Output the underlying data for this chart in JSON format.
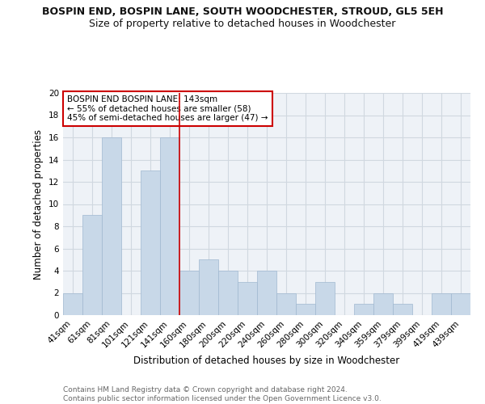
{
  "title": "BOSPIN END, BOSPIN LANE, SOUTH WOODCHESTER, STROUD, GL5 5EH",
  "subtitle": "Size of property relative to detached houses in Woodchester",
  "xlabel": "Distribution of detached houses by size in Woodchester",
  "ylabel": "Number of detached properties",
  "categories": [
    "41sqm",
    "61sqm",
    "81sqm",
    "101sqm",
    "121sqm",
    "141sqm",
    "160sqm",
    "180sqm",
    "200sqm",
    "220sqm",
    "240sqm",
    "260sqm",
    "280sqm",
    "300sqm",
    "320sqm",
    "340sqm",
    "359sqm",
    "379sqm",
    "399sqm",
    "419sqm",
    "439sqm"
  ],
  "values": [
    2,
    9,
    16,
    0,
    13,
    16,
    4,
    5,
    4,
    3,
    4,
    2,
    1,
    3,
    0,
    1,
    2,
    1,
    0,
    2,
    2
  ],
  "bar_color": "#c8d8e8",
  "bar_edgecolor": "#a0b8d0",
  "vline_x_index": 5,
  "vline_color": "#cc0000",
  "annotation_text": "BOSPIN END BOSPIN LANE: 143sqm\n← 55% of detached houses are smaller (58)\n45% of semi-detached houses are larger (47) →",
  "annotation_box_color": "#ffffff",
  "annotation_box_edgecolor": "#cc0000",
  "ylim": [
    0,
    20
  ],
  "yticks": [
    0,
    2,
    4,
    6,
    8,
    10,
    12,
    14,
    16,
    18,
    20
  ],
  "grid_color": "#d0d8e0",
  "background_color": "#eef2f7",
  "footer_text": "Contains HM Land Registry data © Crown copyright and database right 2024.\nContains public sector information licensed under the Open Government Licence v3.0.",
  "title_fontsize": 9,
  "subtitle_fontsize": 9,
  "xlabel_fontsize": 8.5,
  "ylabel_fontsize": 8.5,
  "tick_fontsize": 7.5,
  "annotation_fontsize": 7.5,
  "footer_fontsize": 6.5
}
